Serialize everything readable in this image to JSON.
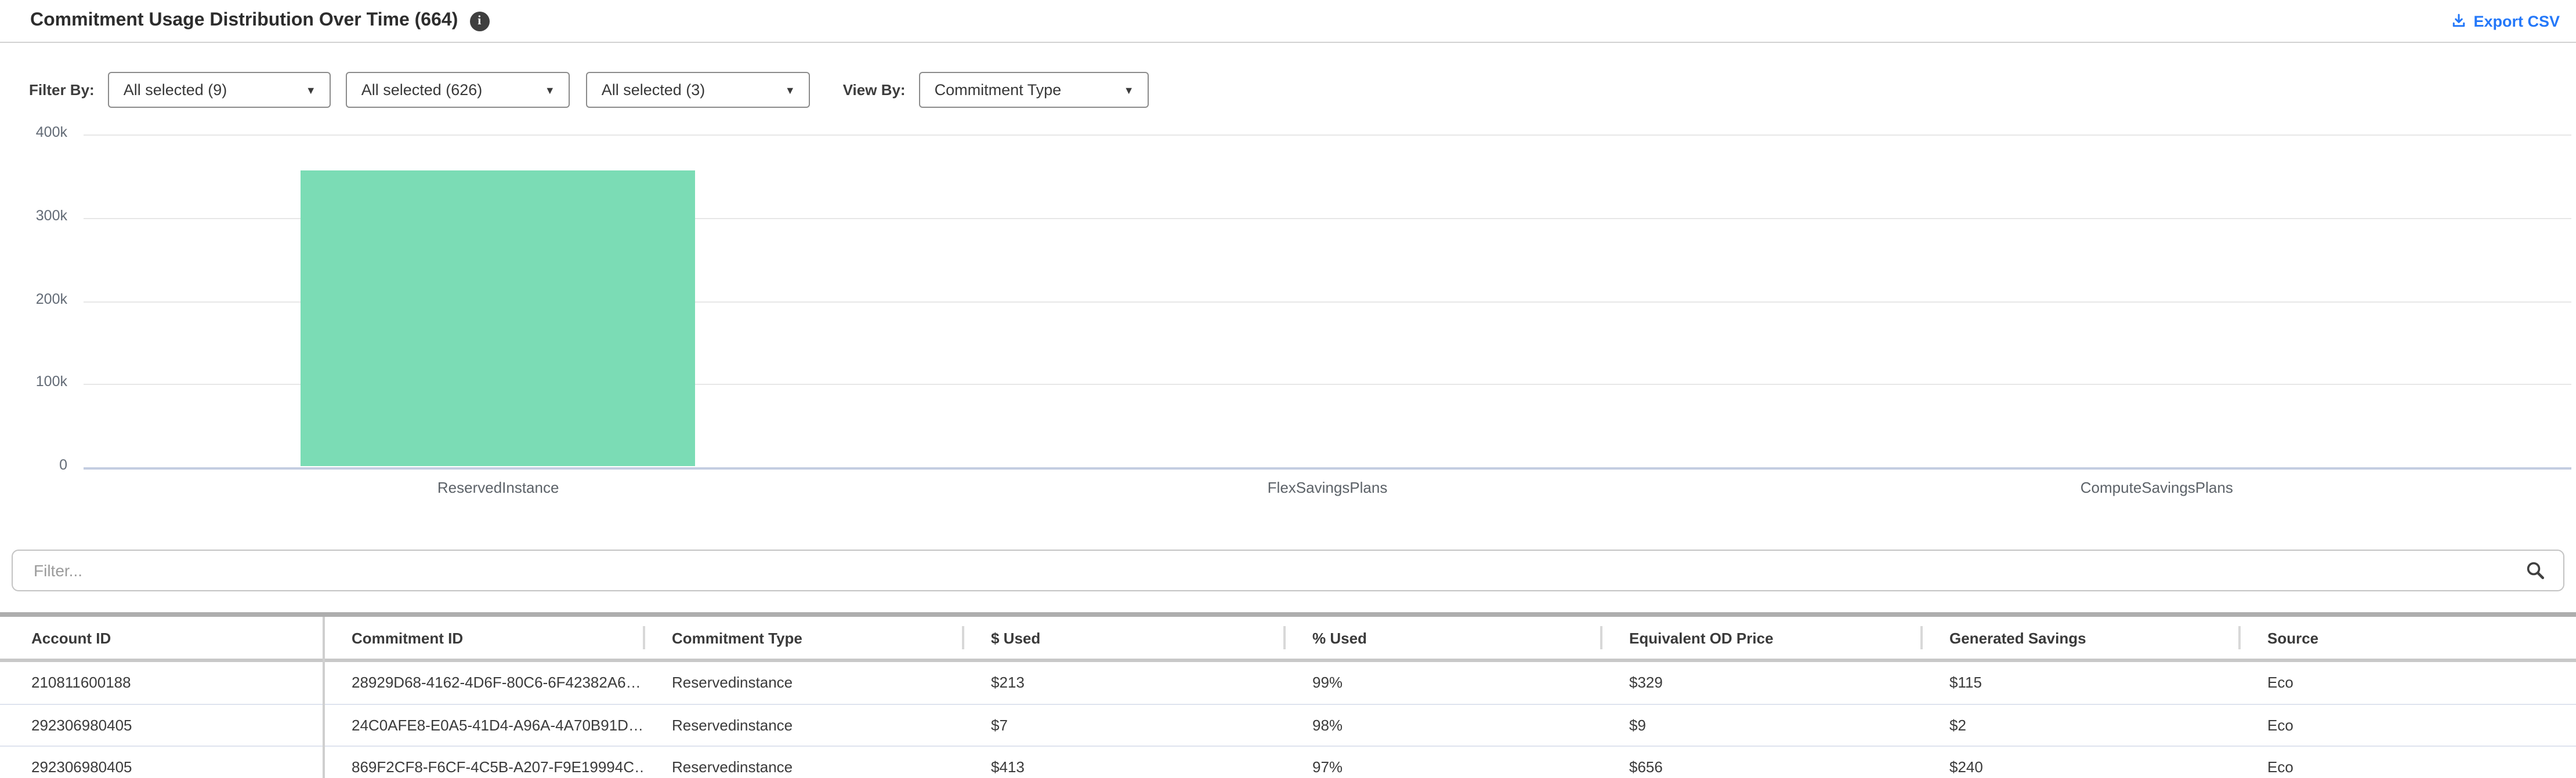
{
  "header": {
    "title": "Commitment Usage Distribution Over Time (664)",
    "export_csv_label": "Export CSV"
  },
  "icons": {
    "info": "info-icon",
    "export": "download-icon",
    "search": "search-icon",
    "dropdown_caret": "caret-down-icon"
  },
  "filter_bar": {
    "filter_by_label": "Filter By:",
    "view_by_label": "View By:",
    "filter_dropdowns": [
      {
        "value": "All selected (9)"
      },
      {
        "value": "All selected (626)"
      },
      {
        "value": "All selected (3)"
      }
    ],
    "view_by_dropdown": {
      "value": "Commitment Type"
    }
  },
  "chart_data": {
    "type": "bar",
    "title": "",
    "xlabel": "",
    "ylabel": "",
    "categories": [
      "ReservedInstance",
      "FlexSavingsPlans",
      "ComputeSavingsPlans"
    ],
    "values": [
      356000,
      0,
      0
    ],
    "ylim": [
      0,
      400000
    ],
    "ytick_labels": [
      "400k",
      "300k",
      "200k",
      "100k",
      "0"
    ],
    "bar_color": "#7bdcb5",
    "grid": true,
    "legend": false
  },
  "table_filter": {
    "placeholder": "Filter..."
  },
  "table": {
    "columns": [
      "Account ID",
      "Commitment ID",
      "Commitment Type",
      "$ Used",
      "% Used",
      "Equivalent OD Price",
      "Generated Savings",
      "Source"
    ],
    "rows": [
      [
        "210811600188",
        "28929D68-4162-4D6F-80C6-6F42382A6…",
        "Reservedinstance",
        "$213",
        "99%",
        "$329",
        "$115",
        "Eco"
      ],
      [
        "292306980405",
        "24C0AFE8-E0A5-41D4-A96A-4A70B91D…",
        "Reservedinstance",
        "$7",
        "98%",
        "$9",
        "$2",
        "Eco"
      ],
      [
        "292306980405",
        "869F2CF8-F6CF-4C5B-A207-F9E19994C…",
        "Reservedinstance",
        "$413",
        "97%",
        "$656",
        "$240",
        "Eco"
      ]
    ]
  },
  "colors": {
    "accent_blue": "#2478f9",
    "bar_green": "#7bdcb5",
    "zero_axis": "#c3cde1"
  }
}
